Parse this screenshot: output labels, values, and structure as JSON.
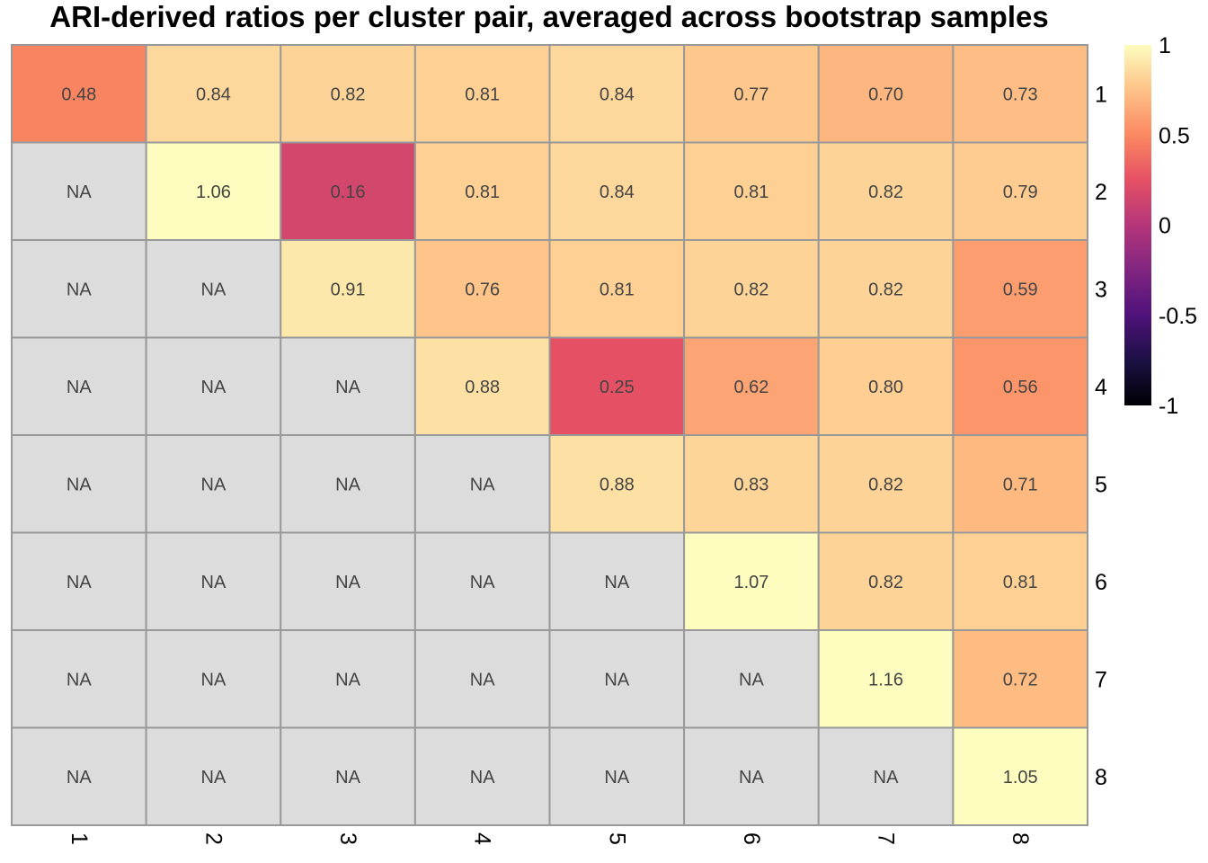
{
  "chart_data": {
    "type": "heatmap",
    "title": "ARI-derived ratios per cluster pair, averaged across bootstrap samples",
    "row_labels": [
      "1",
      "2",
      "3",
      "4",
      "5",
      "6",
      "7",
      "8"
    ],
    "col_labels": [
      "1",
      "2",
      "3",
      "4",
      "5",
      "6",
      "7",
      "8"
    ],
    "values": [
      [
        0.48,
        0.84,
        0.82,
        0.81,
        0.84,
        0.77,
        0.7,
        0.73
      ],
      [
        null,
        1.06,
        0.16,
        0.81,
        0.84,
        0.81,
        0.82,
        0.79
      ],
      [
        null,
        null,
        0.91,
        0.76,
        0.81,
        0.82,
        0.82,
        0.59
      ],
      [
        null,
        null,
        null,
        0.88,
        0.25,
        0.62,
        0.8,
        0.56
      ],
      [
        null,
        null,
        null,
        null,
        0.88,
        0.83,
        0.82,
        0.71
      ],
      [
        null,
        null,
        null,
        null,
        null,
        1.07,
        0.82,
        0.81
      ],
      [
        null,
        null,
        null,
        null,
        null,
        null,
        1.16,
        0.72
      ],
      [
        null,
        null,
        null,
        null,
        null,
        null,
        null,
        1.05
      ]
    ],
    "missing_label": "NA",
    "missing_color": "#dcdcdc",
    "border_color": "#999999",
    "colorscale": "magma",
    "legend": {
      "range": [
        -1,
        1
      ],
      "ticks": [
        1,
        0.5,
        0,
        -0.5,
        -1
      ],
      "tick_labels": [
        "1",
        "0.5",
        "0",
        "-0.5",
        "-1"
      ],
      "placement": "right"
    }
  }
}
